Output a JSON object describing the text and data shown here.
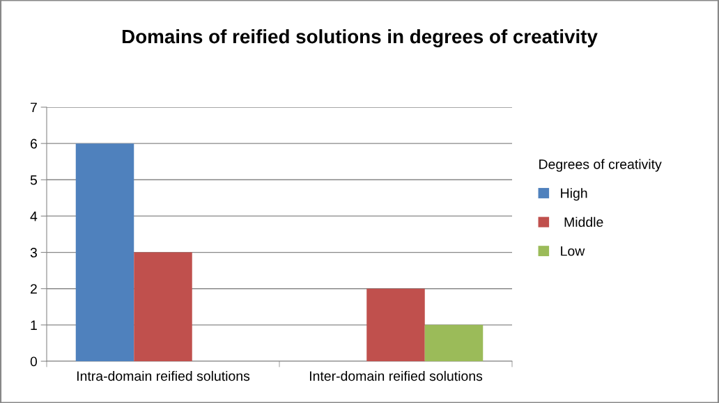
{
  "chart_data": {
    "type": "bar",
    "title": "Domains of reified solutions in degrees of creativity",
    "categories": [
      "Intra-domain reified solutions",
      "Inter-domain reified solutions"
    ],
    "series": [
      {
        "name": "High",
        "color": "#4f81bd",
        "values": [
          6,
          0
        ]
      },
      {
        "name": " Middle",
        "color": "#c0504d",
        "values": [
          3,
          2
        ]
      },
      {
        "name": "Low",
        "color": "#9bbb59",
        "values": [
          0,
          1
        ]
      }
    ],
    "legend_title": "Degrees of creativity",
    "ylim": [
      0,
      7
    ],
    "yticks": [
      0,
      1,
      2,
      3,
      4,
      5,
      6,
      7
    ],
    "grid": "y",
    "legend": "right"
  }
}
